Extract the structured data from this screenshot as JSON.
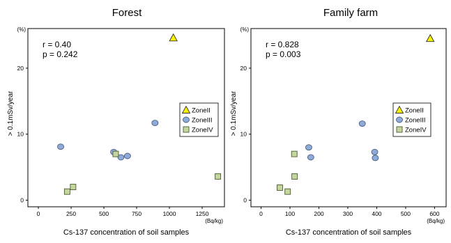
{
  "chart_data": [
    {
      "type": "scatter",
      "title": "Forest",
      "xlabel": "Cs-137 concentration of soil samples",
      "x_unit": "(Bq/kg)",
      "ylabel": "> 0.1mSv/year",
      "y_unit": "(%)",
      "xlim": [
        -80,
        1420
      ],
      "ylim": [
        -1,
        26
      ],
      "x_ticks": [
        "0",
        "250",
        "500",
        "750",
        "1000",
        "1250"
      ],
      "x_tick_values": [
        0,
        250,
        500,
        750,
        1000,
        1250
      ],
      "y_ticks": [
        "0",
        "10",
        "20"
      ],
      "y_tick_values": [
        0,
        10,
        20
      ],
      "stats": [
        "r = 0.40",
        "p = 0.242"
      ],
      "grid": false,
      "legend_position": "right",
      "series": [
        {
          "name": "ZoneII",
          "marker": "triangle",
          "color": "#f7f000",
          "points": [
            {
              "x": 1030,
              "y": 24.6
            }
          ]
        },
        {
          "name": "ZoneIII",
          "marker": "circle",
          "color": "#8faad9",
          "points": [
            {
              "x": 170,
              "y": 8.1
            },
            {
              "x": 575,
              "y": 7.3
            },
            {
              "x": 630,
              "y": 6.5
            },
            {
              "x": 680,
              "y": 6.7
            },
            {
              "x": 890,
              "y": 11.7
            }
          ]
        },
        {
          "name": "ZoneIV",
          "marker": "square",
          "color": "#c3d69b",
          "points": [
            {
              "x": 220,
              "y": 1.3
            },
            {
              "x": 265,
              "y": 2.0
            },
            {
              "x": 590,
              "y": 7.0
            },
            {
              "x": 1370,
              "y": 3.6
            }
          ]
        }
      ]
    },
    {
      "type": "scatter",
      "title": "Family farm",
      "xlabel": "Cs-137 concentration of soil samples",
      "x_unit": "(Bq/kg)",
      "ylabel": "> 0.1mSv/year",
      "y_unit": "(%)",
      "xlim": [
        -35,
        640
      ],
      "ylim": [
        -1,
        26
      ],
      "x_ticks": [
        "0",
        "100",
        "200",
        "300",
        "400",
        "500",
        "600"
      ],
      "x_tick_values": [
        0,
        100,
        200,
        300,
        400,
        500,
        600
      ],
      "y_ticks": [
        "0",
        "10",
        "20"
      ],
      "y_tick_values": [
        0,
        10,
        20
      ],
      "stats": [
        "r = 0.828",
        "p = 0.003"
      ],
      "grid": false,
      "legend_position": "right",
      "series": [
        {
          "name": "ZoneII",
          "marker": "triangle",
          "color": "#f7f000",
          "points": [
            {
              "x": 585,
              "y": 24.5
            }
          ]
        },
        {
          "name": "ZoneIII",
          "marker": "circle",
          "color": "#8faad9",
          "points": [
            {
              "x": 165,
              "y": 8.0
            },
            {
              "x": 172,
              "y": 6.5
            },
            {
              "x": 350,
              "y": 11.6
            },
            {
              "x": 393,
              "y": 7.3
            },
            {
              "x": 395,
              "y": 6.4
            }
          ]
        },
        {
          "name": "ZoneIV",
          "marker": "square",
          "color": "#c3d69b",
          "points": [
            {
              "x": 65,
              "y": 1.9
            },
            {
              "x": 92,
              "y": 1.3
            },
            {
              "x": 115,
              "y": 7.0
            },
            {
              "x": 116,
              "y": 3.6
            }
          ]
        }
      ]
    }
  ]
}
